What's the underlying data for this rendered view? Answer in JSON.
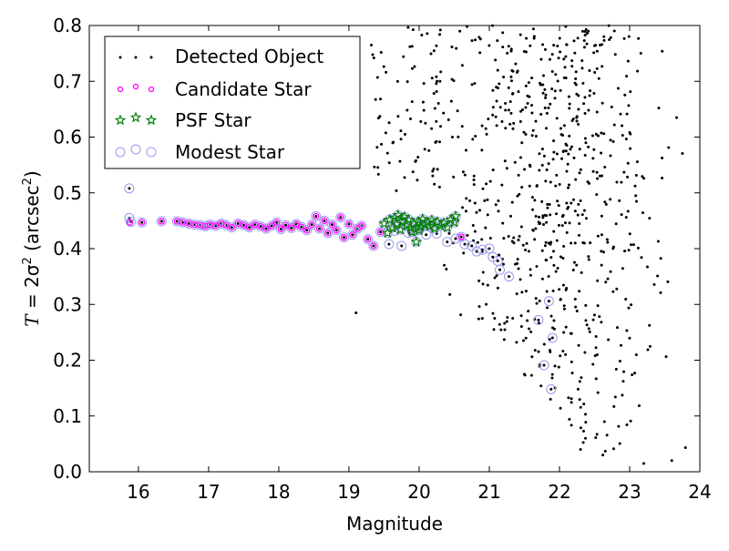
{
  "chart_data": {
    "type": "scatter",
    "xlabel": "Magnitude",
    "ylabel_parts": {
      "prefix": "T",
      "eq": " = 2σ",
      "exp": "2",
      "unit_open": " (arcsec",
      "unit_exp": "2",
      "unit_close": ")"
    },
    "xlim": [
      15.3,
      24
    ],
    "ylim": [
      0.0,
      0.8
    ],
    "x_ticks": [
      16,
      17,
      18,
      19,
      20,
      21,
      22,
      23,
      24
    ],
    "y_ticks": [
      0.0,
      0.1,
      0.2,
      0.3,
      0.4,
      0.5,
      0.6,
      0.7,
      0.8
    ],
    "x_tick_labels": [
      "16",
      "17",
      "18",
      "19",
      "20",
      "21",
      "22",
      "23",
      "24"
    ],
    "y_tick_labels": [
      "0.0",
      "0.1",
      "0.2",
      "0.3",
      "0.4",
      "0.5",
      "0.6",
      "0.7",
      "0.8"
    ],
    "grid": false,
    "legend_position": "top-left",
    "series": [
      {
        "name": "Detected Object",
        "marker": "dot",
        "color": "#000000"
      },
      {
        "name": "Candidate Star",
        "marker": "small-circle",
        "color": "#ff00ff"
      },
      {
        "name": "PSF Star",
        "marker": "star",
        "color": "#008000"
      },
      {
        "name": "Modest Star",
        "marker": "large-circle",
        "color": "#9999ee"
      }
    ],
    "stellar_locus": [
      [
        15.87,
        0.508
      ],
      [
        15.87,
        0.455
      ],
      [
        15.89,
        0.448
      ],
      [
        16.05,
        0.447
      ],
      [
        16.33,
        0.449
      ],
      [
        16.55,
        0.449
      ],
      [
        16.63,
        0.447
      ],
      [
        16.72,
        0.445
      ],
      [
        16.8,
        0.443
      ],
      [
        16.88,
        0.442
      ],
      [
        16.95,
        0.44
      ],
      [
        17.02,
        0.443
      ],
      [
        17.1,
        0.441
      ],
      [
        17.18,
        0.445
      ],
      [
        17.25,
        0.442
      ],
      [
        17.33,
        0.438
      ],
      [
        17.42,
        0.445
      ],
      [
        17.5,
        0.442
      ],
      [
        17.58,
        0.438
      ],
      [
        17.66,
        0.443
      ],
      [
        17.74,
        0.44
      ],
      [
        17.82,
        0.436
      ],
      [
        17.9,
        0.441
      ],
      [
        17.97,
        0.447
      ],
      [
        18.03,
        0.435
      ],
      [
        18.1,
        0.442
      ],
      [
        18.18,
        0.437
      ],
      [
        18.25,
        0.444
      ],
      [
        18.32,
        0.439
      ],
      [
        18.4,
        0.433
      ],
      [
        18.47,
        0.443
      ],
      [
        18.53,
        0.458
      ],
      [
        18.58,
        0.436
      ],
      [
        18.65,
        0.45
      ],
      [
        18.7,
        0.428
      ],
      [
        18.76,
        0.443
      ],
      [
        18.82,
        0.433
      ],
      [
        18.88,
        0.456
      ],
      [
        18.93,
        0.42
      ],
      [
        19.0,
        0.444
      ],
      [
        19.05,
        0.425
      ],
      [
        19.12,
        0.436
      ],
      [
        19.18,
        0.441
      ],
      [
        19.27,
        0.417
      ],
      [
        19.35,
        0.405
      ],
      [
        19.45,
        0.43
      ],
      [
        19.57,
        0.408
      ],
      [
        19.65,
        0.432
      ],
      [
        19.75,
        0.405
      ],
      [
        19.85,
        0.428
      ],
      [
        19.95,
        0.432
      ],
      [
        20.1,
        0.425
      ],
      [
        20.25,
        0.427
      ],
      [
        20.4,
        0.412
      ],
      [
        20.52,
        0.418
      ],
      [
        20.6,
        0.421
      ],
      [
        20.65,
        0.408
      ],
      [
        20.75,
        0.405
      ],
      [
        20.82,
        0.395
      ],
      [
        20.9,
        0.398
      ],
      [
        21.0,
        0.4
      ],
      [
        21.05,
        0.385
      ],
      [
        21.12,
        0.378
      ],
      [
        21.15,
        0.362
      ],
      [
        21.28,
        0.35
      ],
      [
        21.7,
        0.272
      ],
      [
        21.85,
        0.306
      ],
      [
        21.9,
        0.24
      ],
      [
        21.78,
        0.191
      ],
      [
        21.88,
        0.148
      ]
    ],
    "candidate_highlight": [
      [
        15.88,
        0.447
      ],
      [
        16.05,
        0.447
      ],
      [
        16.33,
        0.449
      ],
      [
        16.55,
        0.449
      ],
      [
        16.63,
        0.447
      ],
      [
        16.72,
        0.445
      ],
      [
        16.8,
        0.443
      ],
      [
        16.88,
        0.442
      ],
      [
        16.95,
        0.44
      ],
      [
        17.02,
        0.443
      ],
      [
        17.1,
        0.441
      ],
      [
        17.18,
        0.445
      ],
      [
        17.25,
        0.442
      ],
      [
        17.33,
        0.438
      ],
      [
        17.42,
        0.445
      ],
      [
        17.5,
        0.442
      ],
      [
        17.58,
        0.438
      ],
      [
        17.66,
        0.443
      ],
      [
        17.74,
        0.44
      ],
      [
        17.82,
        0.436
      ],
      [
        17.9,
        0.441
      ],
      [
        17.97,
        0.447
      ],
      [
        18.03,
        0.435
      ],
      [
        18.1,
        0.442
      ],
      [
        18.18,
        0.437
      ],
      [
        18.25,
        0.444
      ],
      [
        18.32,
        0.439
      ],
      [
        18.4,
        0.433
      ],
      [
        18.47,
        0.443
      ],
      [
        18.53,
        0.458
      ],
      [
        18.58,
        0.436
      ],
      [
        18.65,
        0.45
      ],
      [
        18.7,
        0.428
      ],
      [
        18.76,
        0.443
      ],
      [
        18.82,
        0.433
      ],
      [
        18.88,
        0.456
      ],
      [
        18.93,
        0.42
      ],
      [
        19.0,
        0.444
      ],
      [
        19.05,
        0.425
      ],
      [
        19.12,
        0.436
      ],
      [
        19.18,
        0.441
      ],
      [
        19.27,
        0.417
      ],
      [
        19.35,
        0.405
      ],
      [
        19.45,
        0.43
      ],
      [
        20.6,
        0.421
      ]
    ],
    "psf_stars": [
      [
        19.5,
        0.445
      ],
      [
        19.55,
        0.428
      ],
      [
        19.58,
        0.452
      ],
      [
        19.62,
        0.438
      ],
      [
        19.65,
        0.455
      ],
      [
        19.68,
        0.444
      ],
      [
        19.7,
        0.46
      ],
      [
        19.73,
        0.434
      ],
      [
        19.76,
        0.449
      ],
      [
        19.79,
        0.457
      ],
      [
        19.82,
        0.441
      ],
      [
        19.85,
        0.452
      ],
      [
        19.88,
        0.437
      ],
      [
        19.92,
        0.445
      ],
      [
        19.96,
        0.412
      ],
      [
        19.98,
        0.448
      ],
      [
        20.02,
        0.439
      ],
      [
        20.05,
        0.453
      ],
      [
        20.08,
        0.443
      ],
      [
        20.12,
        0.447
      ],
      [
        20.15,
        0.44
      ],
      [
        20.18,
        0.451
      ],
      [
        20.22,
        0.436
      ],
      [
        20.26,
        0.448
      ],
      [
        20.3,
        0.441
      ],
      [
        20.35,
        0.446
      ],
      [
        20.4,
        0.438
      ],
      [
        20.45,
        0.452
      ],
      [
        20.5,
        0.447
      ],
      [
        20.52,
        0.458
      ],
      [
        19.9,
        0.43
      ],
      [
        20.0,
        0.433
      ]
    ],
    "background_counts": {
      "total": 900
    }
  }
}
